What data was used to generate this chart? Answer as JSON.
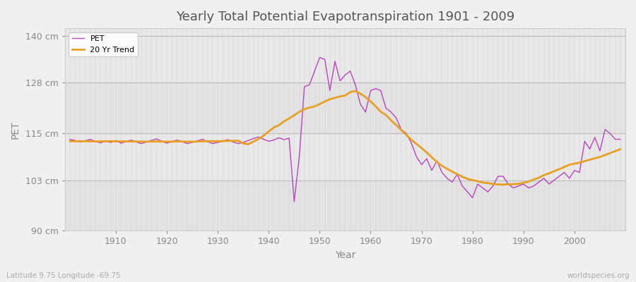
{
  "title": "Yearly Total Potential Evapotranspiration 1901 - 2009",
  "xlabel": "Year",
  "ylabel": "PET",
  "subtitle_left": "Latitude 9.75 Longitude -69.75",
  "subtitle_right": "worldspecies.org",
  "pet_color": "#bb44bb",
  "trend_color": "#e8a020",
  "bg_color": "#f0f0f0",
  "plot_bg_color": "#e8e8e8",
  "grid_color": "#d0d0d0",
  "ylim": [
    90,
    142
  ],
  "yticks": [
    90,
    103,
    115,
    128,
    140
  ],
  "ytick_labels": [
    "90 cm",
    "103 cm",
    "115 cm",
    "128 cm",
    "140 cm"
  ],
  "year_start": 1901,
  "year_end": 2009,
  "pet_values": [
    113.5,
    113.2,
    112.8,
    113.1,
    113.5,
    112.9,
    112.6,
    113.0,
    112.7,
    113.2,
    112.5,
    112.9,
    113.3,
    112.8,
    112.4,
    112.8,
    113.2,
    113.6,
    113.0,
    112.5,
    112.9,
    113.3,
    112.9,
    112.4,
    112.7,
    113.1,
    113.5,
    112.9,
    112.4,
    112.7,
    113.0,
    113.4,
    112.8,
    112.4,
    112.7,
    113.2,
    113.7,
    114.1,
    113.5,
    113.0,
    113.3,
    113.9,
    113.4,
    113.8,
    97.5,
    109.0,
    127.0,
    127.5,
    131.0,
    134.5,
    134.0,
    126.0,
    133.5,
    128.5,
    130.0,
    131.0,
    127.5,
    122.5,
    120.5,
    126.0,
    126.5,
    126.0,
    121.5,
    120.5,
    119.0,
    116.0,
    115.0,
    112.5,
    109.0,
    107.0,
    108.5,
    105.5,
    108.0,
    105.0,
    103.5,
    102.5,
    104.5,
    101.5,
    100.0,
    98.5,
    102.0,
    101.0,
    100.0,
    101.5,
    104.0,
    104.0,
    102.0,
    101.0,
    101.5,
    102.0,
    101.0,
    101.5,
    102.5,
    103.5,
    102.0,
    103.0,
    104.0,
    105.0,
    103.5,
    105.5,
    105.0,
    113.0,
    111.0,
    114.0,
    110.5,
    116.0,
    115.0,
    113.5,
    113.5
  ]
}
